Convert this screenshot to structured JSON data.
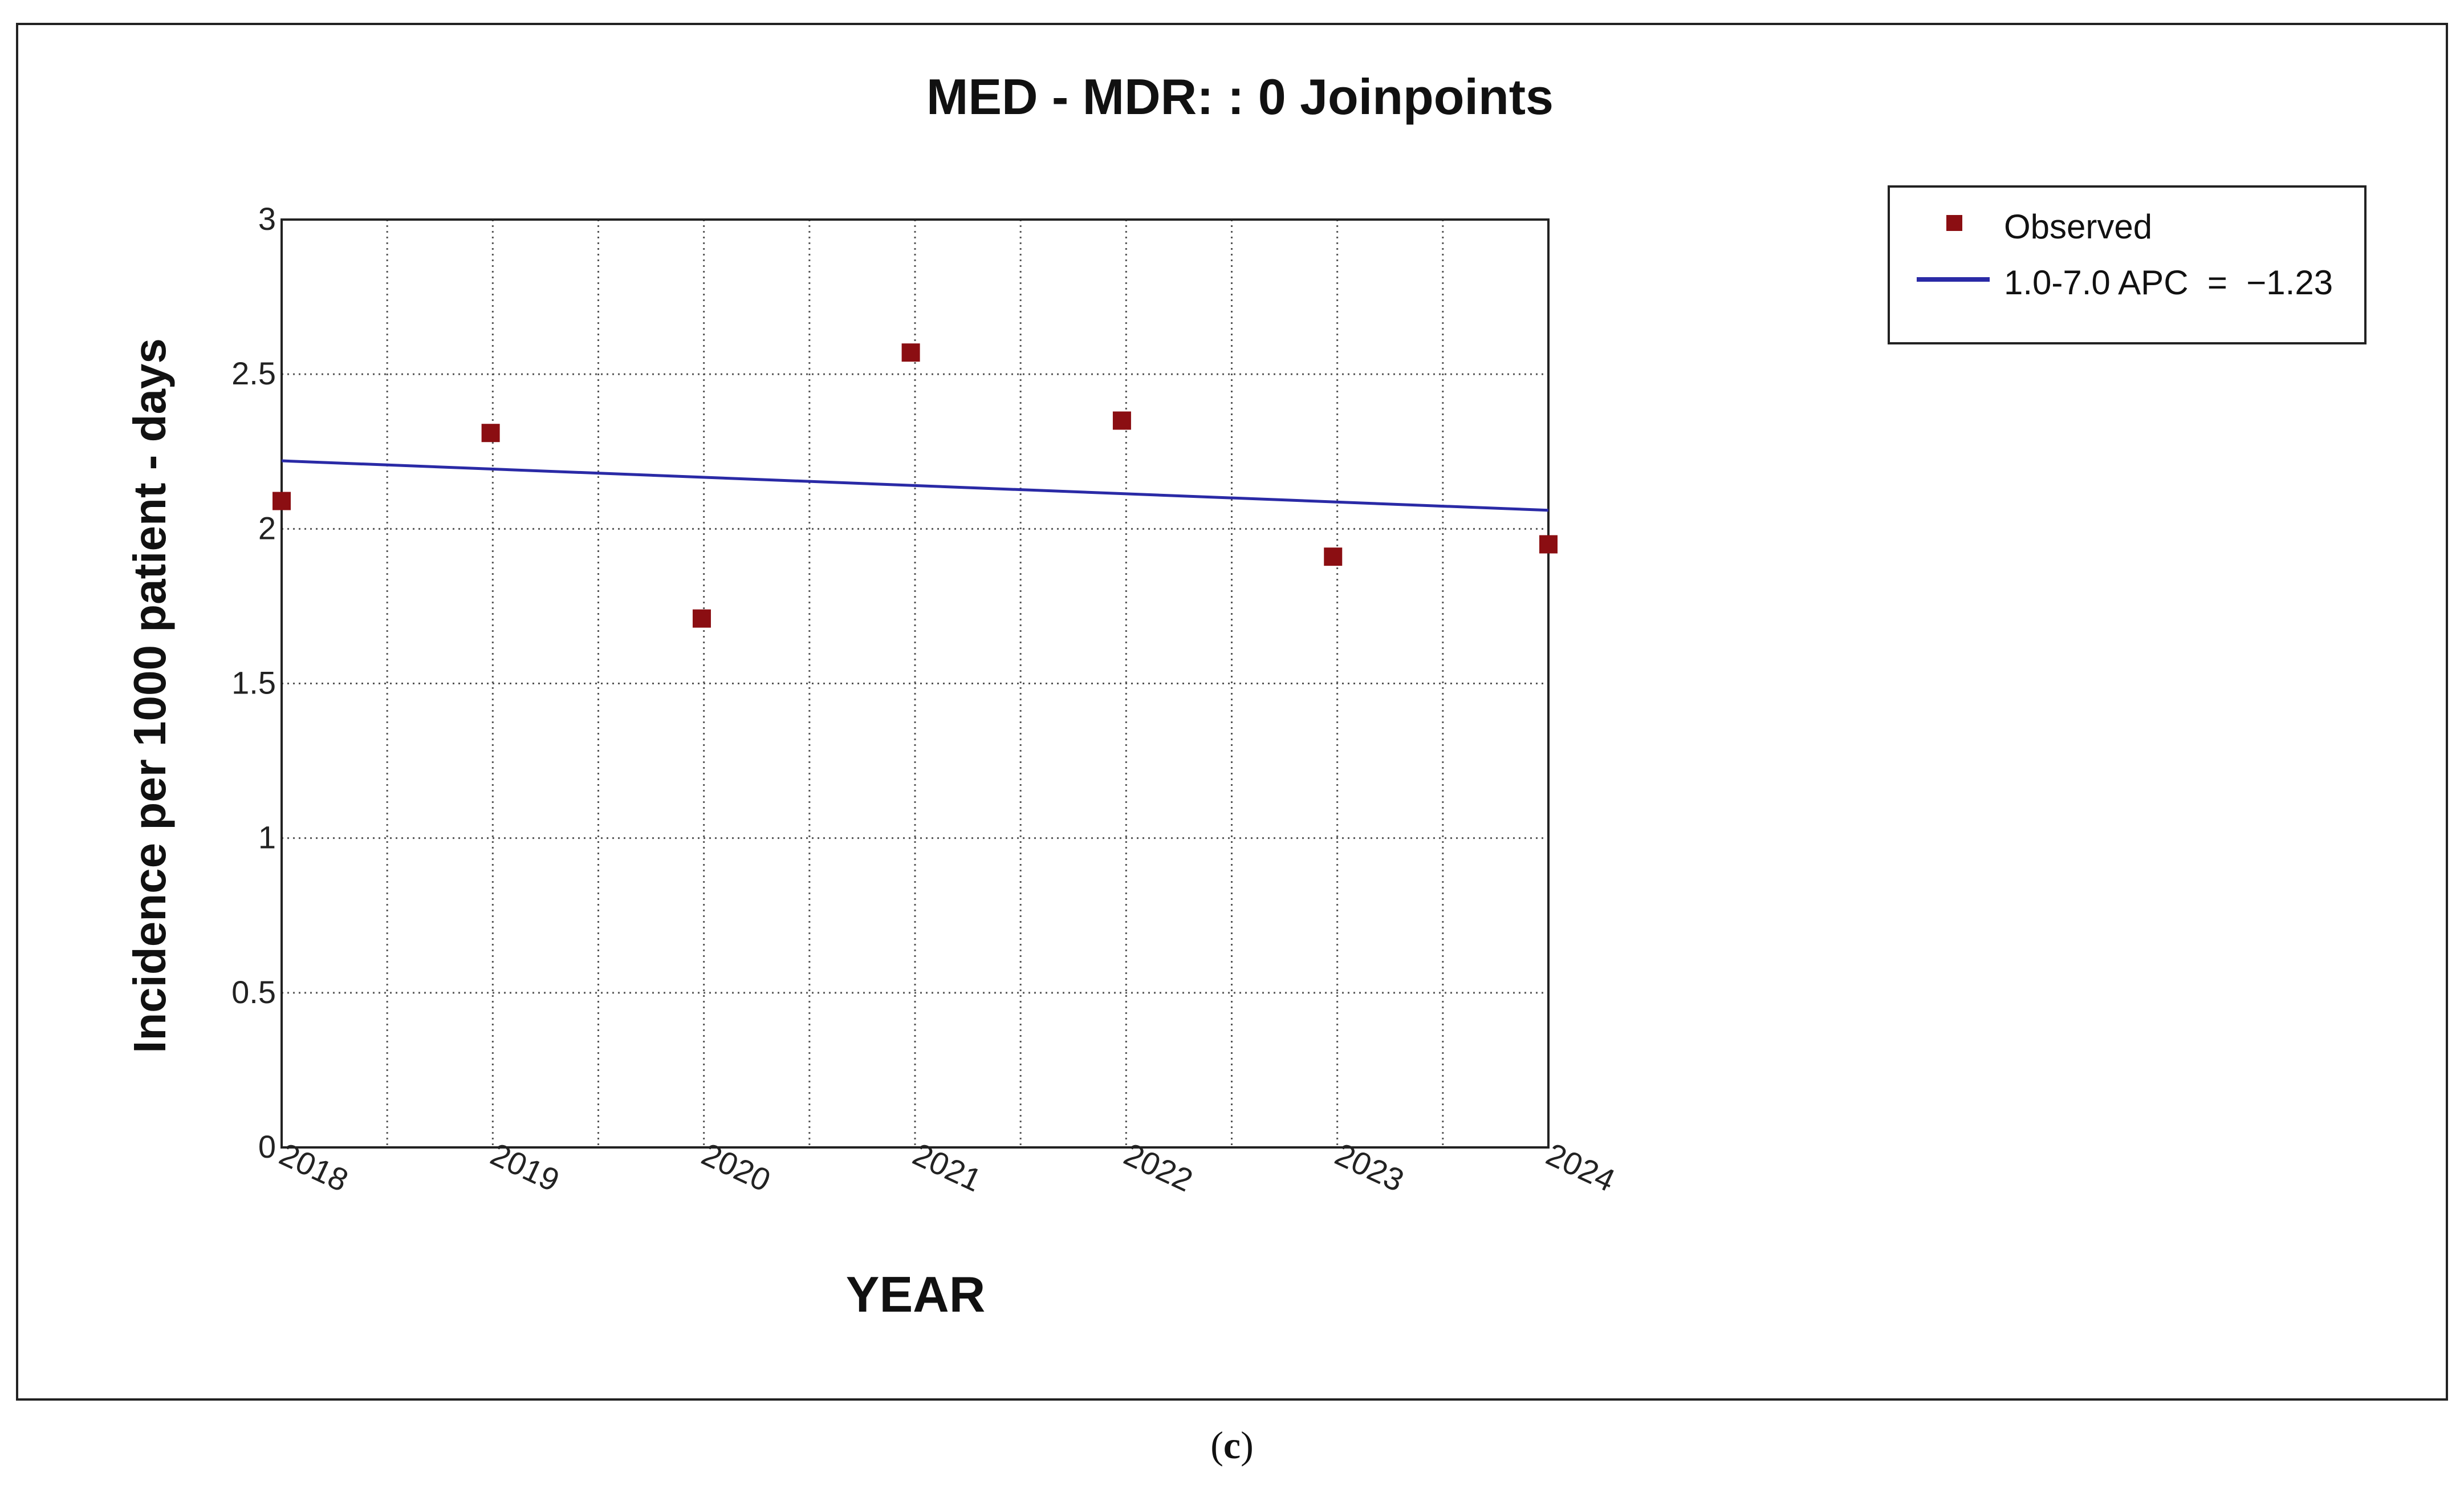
{
  "chart_data": {
    "type": "scatter",
    "title": "MED -  MDR: : 0 Joinpoints",
    "xlabel": "YEAR",
    "ylabel": "Incidence per  1000 patient - days",
    "x_categories": [
      "2018",
      "2019",
      "2020",
      "2021",
      "2022",
      "2023",
      "2024"
    ],
    "ylim": [
      0,
      3
    ],
    "yticks": [
      "0",
      "0.5",
      "1",
      "1.5",
      "2",
      "2.5",
      "3"
    ],
    "grid": true,
    "legend_position": "top-right",
    "series": [
      {
        "name": "Observed",
        "kind": "points",
        "marker": "square",
        "color": "#8b0e12",
        "points": [
          {
            "x": 1.0,
            "y": 2.09
          },
          {
            "x": 1.99,
            "y": 2.31
          },
          {
            "x": 2.99,
            "y": 1.71
          },
          {
            "x": 3.98,
            "y": 2.57
          },
          {
            "x": 4.98,
            "y": 2.35
          },
          {
            "x": 5.98,
            "y": 1.91
          },
          {
            "x": 7.0,
            "y": 1.95
          }
        ]
      },
      {
        "name": "1.0-7.0 APC  =  −1.23",
        "kind": "line",
        "color": "#2a2aa6",
        "points": [
          {
            "x": 1.0,
            "y": 2.22
          },
          {
            "x": 7.0,
            "y": 2.06
          }
        ]
      }
    ]
  },
  "caption": {
    "open": "(",
    "label": "c",
    "close": ")"
  }
}
